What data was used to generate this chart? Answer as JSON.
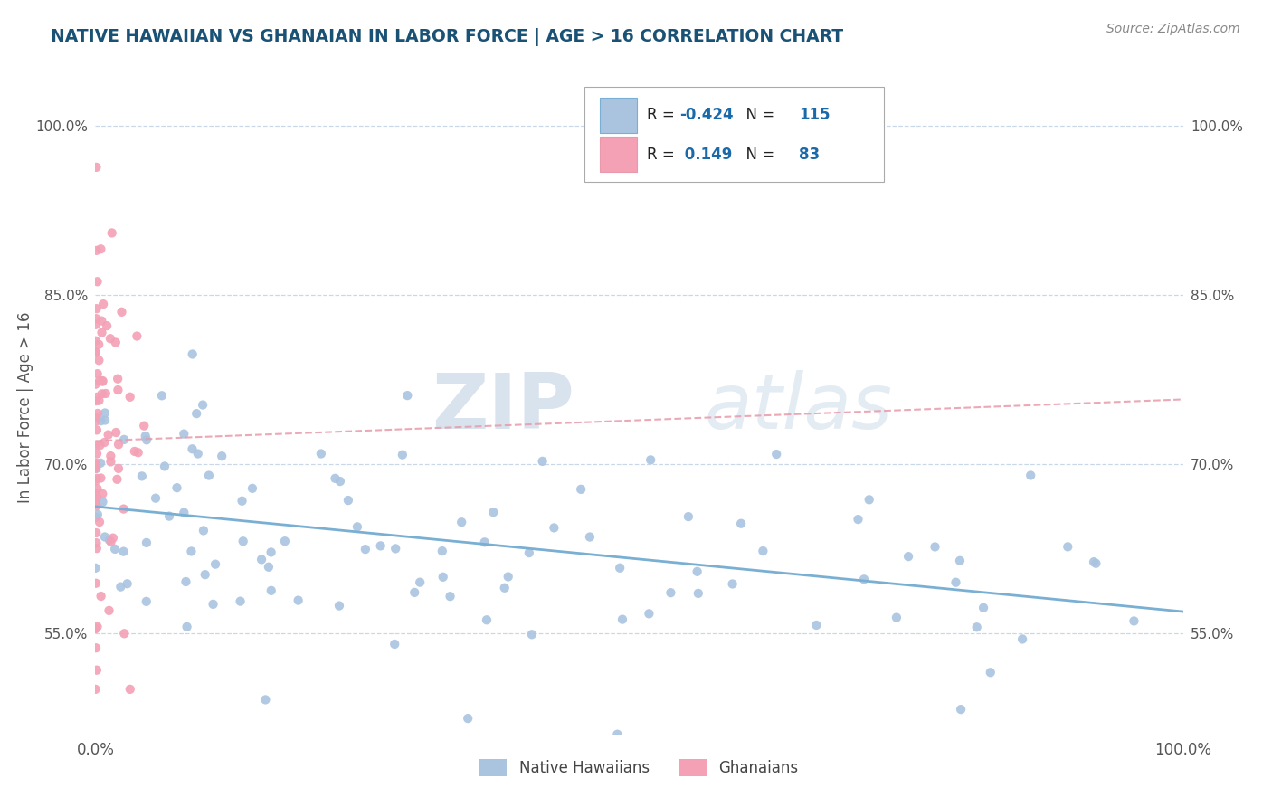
{
  "title": "NATIVE HAWAIIAN VS GHANAIAN IN LABOR FORCE | AGE > 16 CORRELATION CHART",
  "source": "Source: ZipAtlas.com",
  "ylabel": "In Labor Force | Age > 16",
  "xlim": [
    0.0,
    1.0
  ],
  "ylim": [
    0.46,
    1.04
  ],
  "ytick_labels": [
    "55.0%",
    "70.0%",
    "85.0%",
    "100.0%"
  ],
  "ytick_values": [
    0.55,
    0.7,
    0.85,
    1.0
  ],
  "xtick_labels": [
    "0.0%",
    "100.0%"
  ],
  "xtick_values": [
    0.0,
    1.0
  ],
  "hawaiian_color": "#aac4e0",
  "ghanaian_color": "#f4a0b5",
  "hawaiian_R": -0.424,
  "hawaiian_N": 115,
  "ghanaian_R": 0.149,
  "ghanaian_N": 83,
  "hawaiian_line_color": "#7aafd4",
  "ghanaian_line_color": "#e89aaa",
  "legend_label_1": "Native Hawaiians",
  "legend_label_2": "Ghanaians",
  "watermark_zip": "ZIP",
  "watermark_atlas": "atlas",
  "background_color": "#ffffff",
  "grid_color": "#c8d8e8",
  "title_color": "#1a5276",
  "source_color": "#888888",
  "tick_color": "#555555"
}
